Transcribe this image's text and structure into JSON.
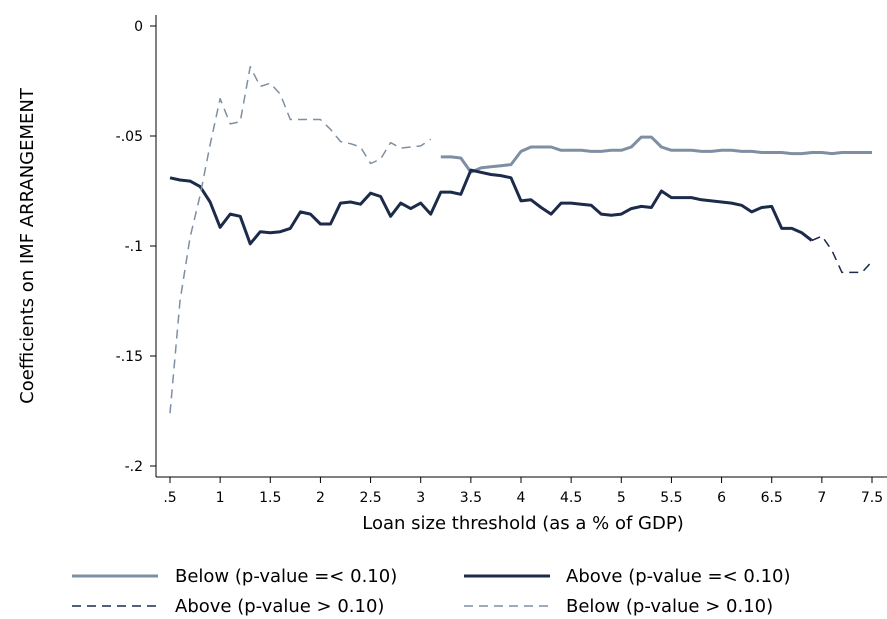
{
  "chart_data": {
    "type": "line",
    "title": "",
    "xlabel": "Loan size threshold (as a % of GDP)",
    "ylabel": "Coefficients on IMF ARRANGEMENT",
    "xlim": [
      0.5,
      7.5
    ],
    "ylim": [
      -0.2,
      0
    ],
    "x_ticks": [
      ".5",
      "1",
      "1.5",
      "2",
      "2.5",
      "3",
      "3.5",
      "4",
      "4.5",
      "5",
      "5.5",
      "6",
      "6.5",
      "7",
      "7.5"
    ],
    "y_ticks": [
      "0",
      "-.05",
      "-.1",
      "-.15",
      "-.2"
    ],
    "grid": false,
    "legend_position": "bottom",
    "series": [
      {
        "name": "Below (p-value =< 0.10)",
        "style": "solid",
        "color": "#7f8fa3",
        "x": [
          3.2,
          3.3,
          3.4,
          3.5,
          3.6,
          3.7,
          3.8,
          3.9,
          4.0,
          4.1,
          4.2,
          4.3,
          4.4,
          4.5,
          4.6,
          4.7,
          4.8,
          4.9,
          5.0,
          5.1,
          5.2,
          5.3,
          5.4,
          5.5,
          5.6,
          5.7,
          5.8,
          5.9,
          6.0,
          6.1,
          6.2,
          6.3,
          6.4,
          6.5,
          6.6,
          6.7,
          6.8,
          6.9,
          7.0,
          7.1,
          7.2,
          7.3,
          7.4,
          7.5
        ],
        "values": [
          -0.0595,
          -0.0595,
          -0.06,
          -0.0665,
          -0.0645,
          -0.064,
          -0.0635,
          -0.063,
          -0.057,
          -0.055,
          -0.055,
          -0.055,
          -0.0565,
          -0.0565,
          -0.0565,
          -0.057,
          -0.057,
          -0.0565,
          -0.0565,
          -0.055,
          -0.0505,
          -0.0505,
          -0.055,
          -0.0565,
          -0.0565,
          -0.0565,
          -0.057,
          -0.057,
          -0.0565,
          -0.0565,
          -0.057,
          -0.057,
          -0.0575,
          -0.0575,
          -0.0575,
          -0.058,
          -0.058,
          -0.0575,
          -0.0575,
          -0.058,
          -0.0575,
          -0.0575,
          -0.0575,
          -0.0575
        ]
      },
      {
        "name": "Above (p-value =< 0.10)",
        "style": "solid",
        "color": "#1c2b4a",
        "x": [
          0.5,
          0.6,
          0.7,
          0.8,
          0.9,
          1.0,
          1.1,
          1.2,
          1.3,
          1.4,
          1.5,
          1.6,
          1.7,
          1.8,
          1.9,
          2.0,
          2.1,
          2.2,
          2.3,
          2.4,
          2.5,
          2.6,
          2.7,
          2.8,
          2.9,
          3.0,
          3.1,
          3.2,
          3.3,
          3.4,
          3.5,
          3.6,
          3.7,
          3.8,
          3.9,
          4.0,
          4.1,
          4.2,
          4.3,
          4.4,
          4.5,
          4.6,
          4.7,
          4.8,
          4.9,
          5.0,
          5.1,
          5.2,
          5.3,
          5.4,
          5.5,
          5.6,
          5.7,
          5.8,
          5.9,
          6.0,
          6.1,
          6.2,
          6.3,
          6.4,
          6.5,
          6.6,
          6.7,
          6.8,
          6.9
        ],
        "values": [
          -0.069,
          -0.07,
          -0.0705,
          -0.073,
          -0.08,
          -0.0915,
          -0.0855,
          -0.0865,
          -0.099,
          -0.0935,
          -0.094,
          -0.0935,
          -0.092,
          -0.0845,
          -0.0855,
          -0.09,
          -0.09,
          -0.0805,
          -0.08,
          -0.081,
          -0.076,
          -0.0775,
          -0.0865,
          -0.0805,
          -0.083,
          -0.0805,
          -0.0855,
          -0.0755,
          -0.0755,
          -0.0765,
          -0.0655,
          -0.0665,
          -0.0675,
          -0.068,
          -0.069,
          -0.0795,
          -0.079,
          -0.0825,
          -0.0855,
          -0.0805,
          -0.0805,
          -0.081,
          -0.0815,
          -0.0855,
          -0.086,
          -0.0855,
          -0.083,
          -0.082,
          -0.0825,
          -0.075,
          -0.078,
          -0.078,
          -0.078,
          -0.079,
          -0.0795,
          -0.08,
          -0.0805,
          -0.0815,
          -0.0845,
          -0.0825,
          -0.082,
          -0.092,
          -0.092,
          -0.094,
          -0.0975
        ]
      },
      {
        "name": "Above (p-value > 0.10)",
        "style": "dashed",
        "color": "#1c2b4a",
        "x": [
          6.9,
          7.0,
          7.1,
          7.2,
          7.3,
          7.4,
          7.5
        ],
        "values": [
          -0.0975,
          -0.0955,
          -0.102,
          -0.112,
          -0.112,
          -0.112,
          -0.107
        ]
      },
      {
        "name": "Below (p-value > 0.10)",
        "style": "dashed",
        "color": "#7f8fa3",
        "x": [
          0.5,
          0.6,
          0.7,
          0.8,
          0.9,
          1.0,
          1.1,
          1.2,
          1.3,
          1.4,
          1.5,
          1.6,
          1.7,
          1.8,
          1.9,
          2.0,
          2.1,
          2.2,
          2.3,
          2.4,
          2.5,
          2.6,
          2.7,
          2.8,
          2.9,
          3.0,
          3.1
        ],
        "values": [
          -0.176,
          -0.125,
          -0.096,
          -0.077,
          -0.054,
          -0.033,
          -0.0445,
          -0.0435,
          -0.0185,
          -0.0275,
          -0.026,
          -0.031,
          -0.0425,
          -0.0425,
          -0.0425,
          -0.0425,
          -0.047,
          -0.0525,
          -0.0535,
          -0.055,
          -0.0625,
          -0.0605,
          -0.053,
          -0.0555,
          -0.055,
          -0.0545,
          -0.0515
        ]
      }
    ]
  }
}
